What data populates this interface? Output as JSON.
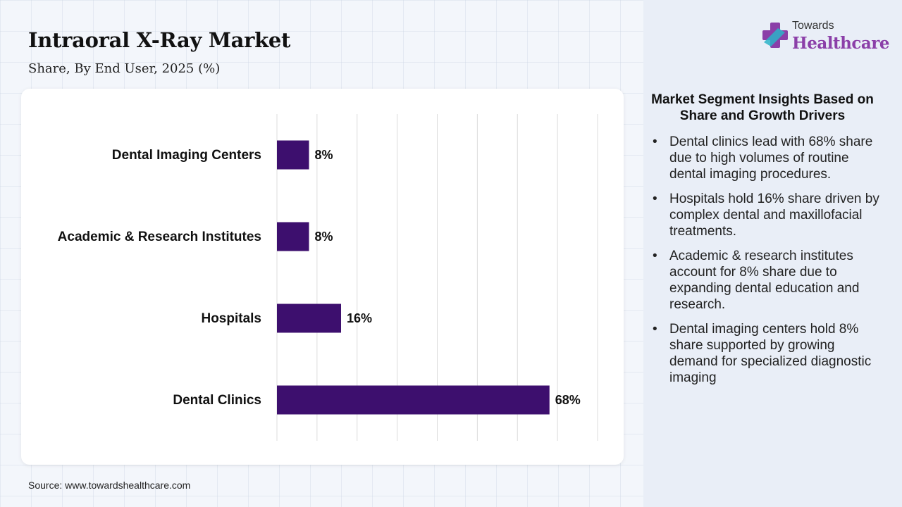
{
  "header": {
    "title": "Intraoral X-Ray Market",
    "subtitle": "Share, By End User, 2025 (%)"
  },
  "logo": {
    "top_text": "Towards",
    "main_text": "Healthcare",
    "icon": "cross-icon"
  },
  "insights": {
    "title": "Market Segment Insights Based on Share and Growth Drivers",
    "bullet": "•",
    "items": [
      "Dental clinics lead with 68% share due to high volumes of routine dental imaging procedures.",
      "Hospitals hold 16% share driven by complex dental and maxillofacial treatments.",
      "Academic & research institutes account for 8% share due to expanding dental education and research.",
      "Dental imaging centers hold 8% share supported by growing demand for specialized diagnostic imaging"
    ]
  },
  "source": "Source: www.towardshealthcare.com",
  "colors": {
    "bar": "#3d0f6e",
    "logo_purple": "#8b3fa8",
    "logo_teal": "#2bb3c8"
  },
  "chart_data": {
    "type": "bar",
    "orientation": "horizontal",
    "categories": [
      "Dental Imaging Centers",
      "Academic & Research Institutes",
      "Hospitals",
      "Dental Clinics"
    ],
    "values": [
      8,
      8,
      16,
      68
    ],
    "data_labels": [
      "8%",
      "8%",
      "16%",
      "68%"
    ],
    "xlim": [
      0,
      80
    ],
    "grid": true,
    "legend": "none"
  }
}
